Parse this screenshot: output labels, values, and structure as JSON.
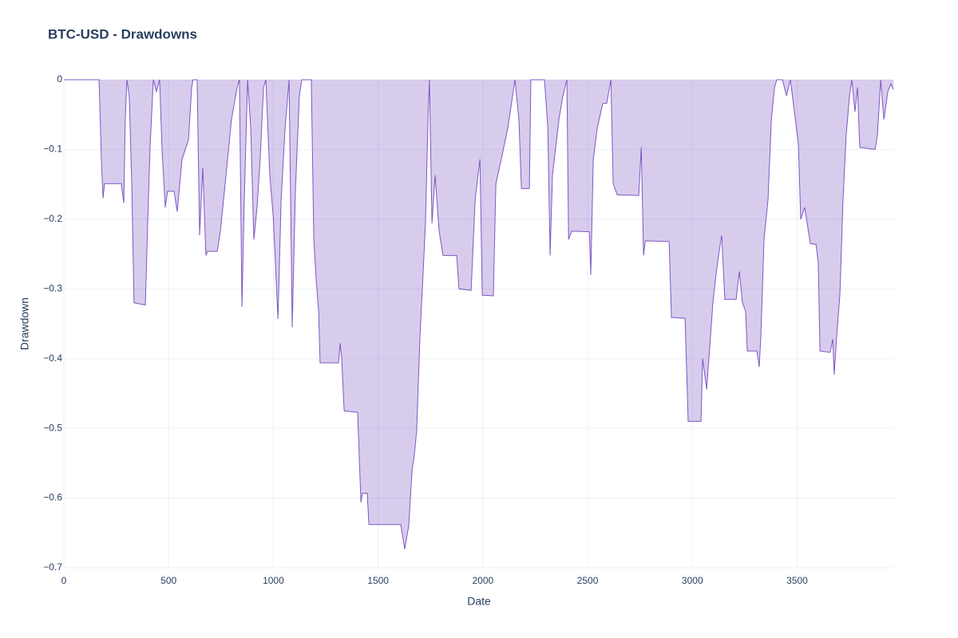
{
  "chart_data": {
    "type": "area",
    "title": "BTC-USD - Drawdowns",
    "x_label": "Date",
    "y_label": "Drawdown",
    "color": "#7e57c2",
    "grid": true,
    "xlim": [
      0,
      3963
    ],
    "xticks": [
      0,
      500,
      1000,
      1500,
      2000,
      2500,
      3000,
      3500
    ],
    "ylim": [
      -0.7,
      0
    ],
    "yticks": [
      0,
      {
        "value": -0.1,
        "label": "−0.1"
      },
      {
        "value": -0.2,
        "label": "−0.2"
      },
      {
        "value": -0.3,
        "label": "−0.3"
      },
      {
        "value": -0.4,
        "label": "−0.4"
      },
      {
        "value": -0.5,
        "label": "−0.5"
      },
      {
        "value": -0.6,
        "label": "−0.6"
      },
      {
        "value": -0.7,
        "label": "−0.7"
      }
    ],
    "x": [
      0,
      168,
      179,
      187,
      194,
      274,
      286,
      293,
      301,
      312,
      324,
      335,
      389,
      400,
      412,
      427,
      442,
      457,
      469,
      484,
      495,
      526,
      541,
      564,
      595,
      610,
      617,
      636,
      648,
      663,
      678,
      686,
      732,
      747,
      770,
      800,
      827,
      838,
      850,
      861,
      877,
      892,
      907,
      922,
      937,
      953,
      964,
      983,
      999,
      1022,
      1037,
      1056,
      1075,
      1090,
      1105,
      1124,
      1136,
      1181,
      1193,
      1204,
      1216,
      1223,
      1311,
      1319,
      1326,
      1338,
      1402,
      1418,
      1425,
      1448,
      1456,
      1608,
      1627,
      1646,
      1662,
      1673,
      1684,
      1700,
      1715,
      1726,
      1738,
      1745,
      1757,
      1772,
      1791,
      1810,
      1875,
      1886,
      1944,
      1963,
      1986,
      1997,
      2050,
      2062,
      2088,
      2119,
      2142,
      2153,
      2172,
      2184,
      2222,
      2229,
      2294,
      2310,
      2321,
      2332,
      2363,
      2382,
      2401,
      2409,
      2424,
      2508,
      2515,
      2527,
      2546,
      2572,
      2591,
      2611,
      2622,
      2641,
      2744,
      2756,
      2767,
      2775,
      2889,
      2900,
      2965,
      2980,
      3041,
      3049,
      3068,
      3087,
      3098,
      3110,
      3125,
      3140,
      3155,
      3209,
      3224,
      3239,
      3254,
      3262,
      3308,
      3319,
      3327,
      3342,
      3361,
      3377,
      3392,
      3403,
      3430,
      3449,
      3468,
      3487,
      3506,
      3517,
      3536,
      3563,
      3590,
      3601,
      3609,
      3658,
      3670,
      3677,
      3689,
      3704,
      3719,
      3734,
      3750,
      3761,
      3776,
      3788,
      3799,
      3872,
      3883,
      3899,
      3914,
      3933,
      3948,
      3960
    ],
    "values": [
      0,
      0,
      -0.114,
      -0.17,
      -0.149,
      -0.149,
      -0.177,
      -0.057,
      0,
      -0.023,
      -0.149,
      -0.32,
      -0.323,
      -0.206,
      -0.092,
      0,
      -0.017,
      0,
      -0.103,
      -0.183,
      -0.16,
      -0.16,
      -0.189,
      -0.114,
      -0.086,
      -0.011,
      0,
      0,
      -0.223,
      -0.126,
      -0.252,
      -0.246,
      -0.246,
      -0.217,
      -0.149,
      -0.057,
      -0.011,
      0,
      -0.326,
      -0.172,
      0,
      -0.069,
      -0.229,
      -0.183,
      -0.114,
      -0.011,
      0,
      -0.137,
      -0.195,
      -0.343,
      -0.172,
      -0.069,
      0,
      -0.355,
      -0.16,
      -0.023,
      0,
      0,
      -0.229,
      -0.286,
      -0.332,
      -0.406,
      -0.406,
      -0.378,
      -0.4,
      -0.475,
      -0.477,
      -0.606,
      -0.593,
      -0.593,
      -0.638,
      -0.638,
      -0.673,
      -0.64,
      -0.56,
      -0.538,
      -0.503,
      -0.366,
      -0.275,
      -0.206,
      -0.057,
      0,
      -0.206,
      -0.137,
      -0.217,
      -0.252,
      -0.252,
      -0.3,
      -0.302,
      -0.172,
      -0.114,
      -0.309,
      -0.31,
      -0.149,
      -0.114,
      -0.069,
      -0.023,
      0,
      -0.057,
      -0.156,
      -0.156,
      0,
      0,
      -0.069,
      -0.252,
      -0.137,
      -0.057,
      -0.023,
      0,
      -0.229,
      -0.217,
      -0.218,
      -0.28,
      -0.114,
      -0.069,
      -0.034,
      -0.034,
      0,
      -0.149,
      -0.165,
      -0.166,
      -0.097,
      -0.252,
      -0.231,
      -0.232,
      -0.341,
      -0.342,
      -0.49,
      -0.49,
      -0.4,
      -0.444,
      -0.366,
      -0.32,
      -0.286,
      -0.252,
      -0.223,
      -0.315,
      -0.315,
      -0.275,
      -0.32,
      -0.332,
      -0.389,
      -0.389,
      -0.412,
      -0.366,
      -0.229,
      -0.172,
      -0.057,
      -0.011,
      0,
      0,
      -0.023,
      0,
      -0.046,
      -0.092,
      -0.2,
      -0.183,
      -0.235,
      -0.236,
      -0.263,
      -0.389,
      -0.391,
      -0.372,
      -0.423,
      -0.366,
      -0.309,
      -0.172,
      -0.08,
      -0.023,
      0,
      -0.046,
      -0.011,
      -0.097,
      -0.1,
      -0.08,
      0,
      -0.057,
      -0.017,
      -0.006,
      -0.014
    ]
  }
}
